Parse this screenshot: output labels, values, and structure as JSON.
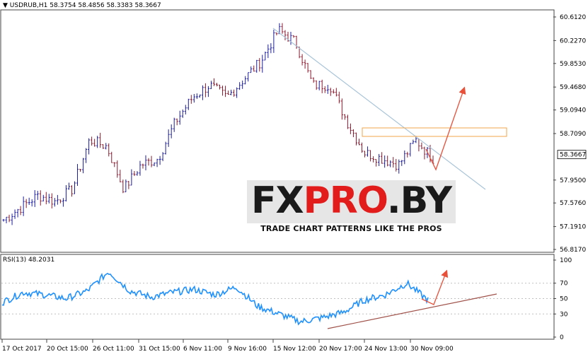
{
  "header": {
    "symbol": "USDRUB,H1",
    "ohlc": "58.3754 58.4856 58.3383 58.3667"
  },
  "watermark": {
    "brand_left": "FX",
    "brand_mid": "PRO",
    "brand_right": ".BY",
    "tagline": "TRADE CHART PATTERNS LIKE THE PROS"
  },
  "colors": {
    "bull_candle": "#1c1c9c",
    "bear_candle": "#8b1a2e",
    "rsi_line": "#1e90ff",
    "trend_line": "#a9c4d8",
    "support_line": "#a0524a",
    "arrow": "#e8503a",
    "zone": "#f2a64a"
  },
  "chart_data": [
    {
      "type": "candlestick",
      "title": "USDRUB,H1",
      "ylim": [
        56.817,
        60.612
      ],
      "yticks": [
        "60.6120",
        "60.2270",
        "59.8530",
        "59.4680",
        "59.0940",
        "58.7090",
        "58.3667",
        "57.9500",
        "57.5760",
        "57.1910",
        "56.8170"
      ],
      "current_price": "58.3667",
      "close_series_approx": [
        57.3,
        57.5,
        57.7,
        57.6,
        57.8,
        58.6,
        58.5,
        57.8,
        58.2,
        58.3,
        58.9,
        59.3,
        59.5,
        59.3,
        59.6,
        59.9,
        60.4,
        60.2,
        59.5,
        59.5,
        58.9,
        58.4,
        58.3,
        58.2,
        58.6,
        58.3
      ],
      "annotations": [
        {
          "type": "trend-line",
          "from": [
            "15 Nov",
            60.45
          ],
          "to": [
            "30 Nov+",
            57.85
          ]
        },
        {
          "type": "zone",
          "y": [
            58.65,
            58.8
          ]
        },
        {
          "type": "arrow",
          "direction": "down-then-up"
        }
      ]
    },
    {
      "type": "line",
      "title": "RSI(13) 48.2031",
      "ylim": [
        0,
        100
      ],
      "yticks": [
        "100",
        "70",
        "50",
        "30",
        "0"
      ],
      "x_labels": [
        "17 Oct 2017",
        "20 Oct 15:00",
        "26 Oct 11:00",
        "31 Oct 15:00",
        "6 Nov 11:00",
        "9 Nov 16:00",
        "15 Nov 12:00",
        "20 Nov 17:00",
        "24 Nov 13:00",
        "30 Nov 09:00"
      ],
      "values_approx": [
        45,
        58,
        55,
        50,
        60,
        85,
        60,
        52,
        58,
        62,
        55,
        65,
        40,
        30,
        20,
        25,
        32,
        48,
        55,
        70,
        48
      ]
    }
  ]
}
